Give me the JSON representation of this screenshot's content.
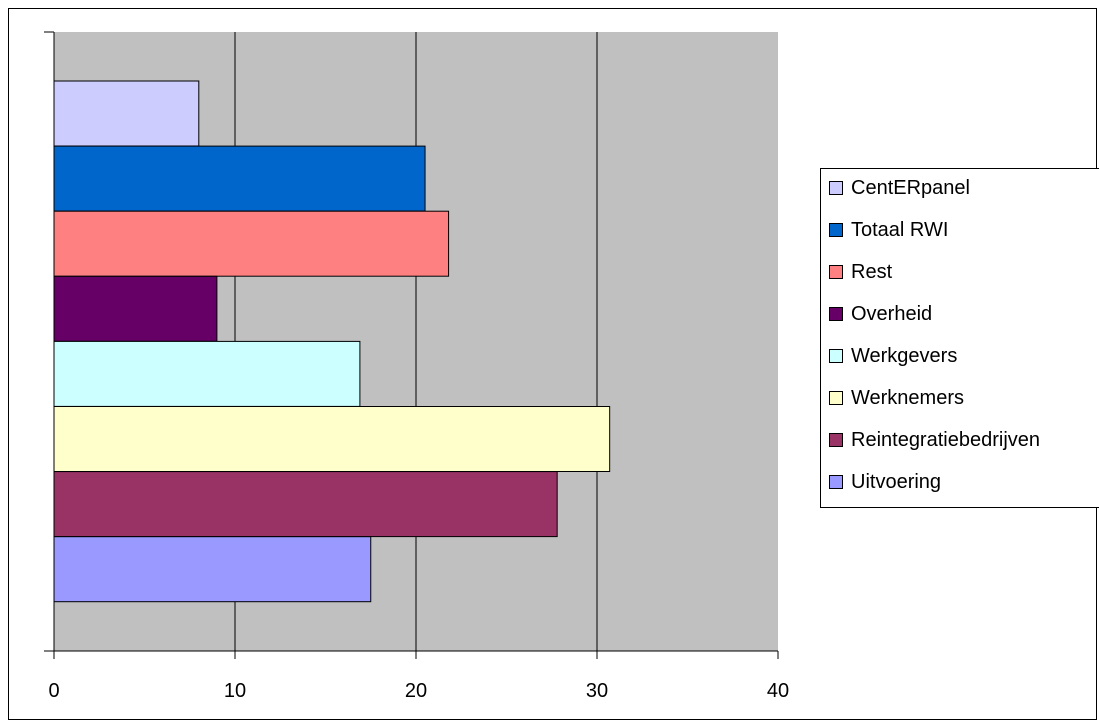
{
  "chart_data": {
    "type": "bar",
    "orientation": "horizontal",
    "title": "",
    "xlabel": "",
    "ylabel": "",
    "xlim": [
      0,
      40
    ],
    "x_ticks": [
      "0",
      "10",
      "20",
      "30",
      "40"
    ],
    "grid": "vertical",
    "legend_position": "right",
    "plot_background": "#c0c0c0",
    "categories": [
      "CentERpanel",
      "Totaal RWI",
      "Rest",
      "Overheid",
      "Werkgevers",
      "Werknemers",
      "Reintegratiebedrijven",
      "Uitvoering"
    ],
    "values": [
      8.0,
      20.5,
      21.8,
      9.0,
      16.9,
      30.7,
      27.8,
      17.5
    ],
    "colors": [
      "#ccccff",
      "#0066cc",
      "#ff8080",
      "#660066",
      "#ccffff",
      "#ffffcc",
      "#993366",
      "#9999ff"
    ]
  }
}
